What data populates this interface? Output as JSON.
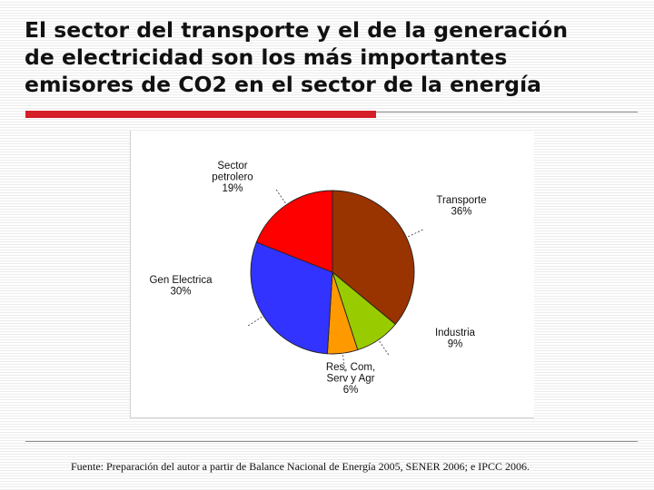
{
  "slide": {
    "title_lines": [
      "El sector del transporte y el de la generación",
      "de electricidad son los más importantes",
      "emisores de CO2 en el sector de la energía"
    ],
    "source": "Fuente: Preparación del autor a partir de Balance Nacional de Energía 2005, SENER 2006; e IPCC 2006.",
    "accent_color": "#d42027"
  },
  "chart_data": {
    "type": "pie",
    "title": "",
    "start_angle_deg": 0,
    "direction": "clockwise",
    "labels": [
      "Transporte",
      "Industria",
      "Res, Com, Serv y Agr",
      "Gen Electrica",
      "Sector petrolero"
    ],
    "values": [
      36,
      9,
      6,
      30,
      19
    ],
    "value_labels": [
      "36%",
      "9%",
      "6%",
      "30%",
      "19%"
    ],
    "colors": [
      "#993300",
      "#99cc00",
      "#ff9900",
      "#3333ff",
      "#ff0000"
    ],
    "label_lines": [
      [
        "Transporte",
        "36%"
      ],
      [
        "Industria",
        "9%"
      ],
      [
        "Res, Com,",
        "Serv y Agr",
        "6%"
      ],
      [
        "Gen Electrica",
        "30%"
      ],
      [
        "Sector",
        "petrolero",
        "19%"
      ]
    ]
  }
}
